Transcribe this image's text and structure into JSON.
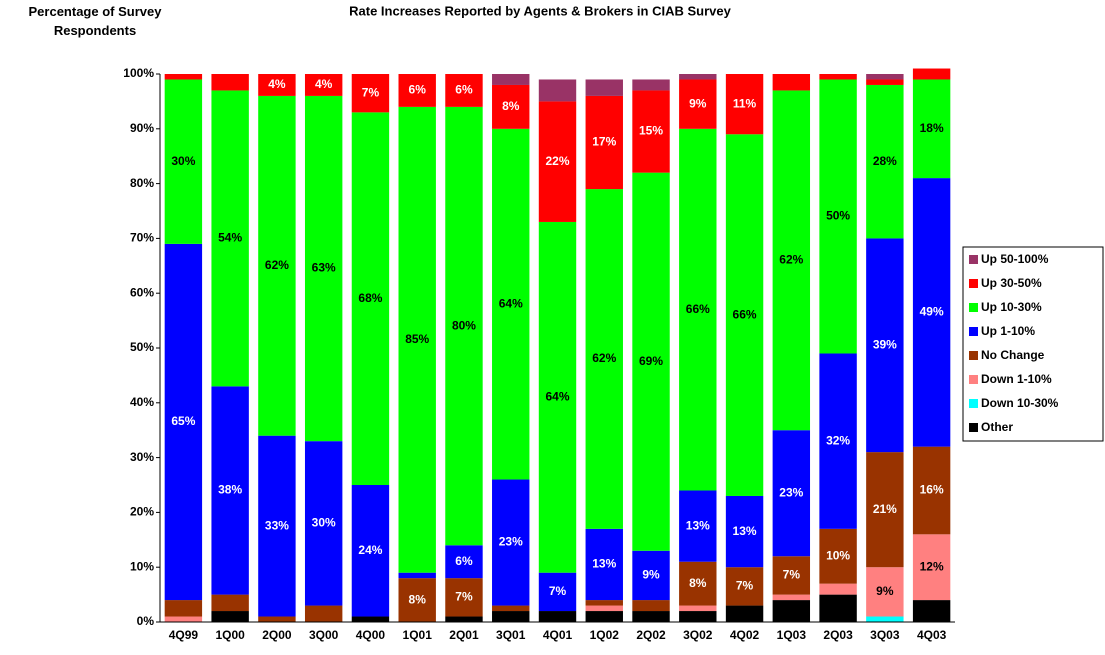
{
  "chart_data": {
    "type": "stacked-bar",
    "title": "Rate Increases Reported by Agents & Brokers in CIAB Survey",
    "y_label": "Percentage of Survey Respondents",
    "categories": [
      "4Q99",
      "1Q00",
      "2Q00",
      "3Q00",
      "4Q00",
      "1Q01",
      "2Q01",
      "3Q01",
      "4Q01",
      "1Q02",
      "2Q02",
      "3Q02",
      "4Q02",
      "1Q03",
      "2Q03",
      "3Q03",
      "4Q03"
    ],
    "ylim": [
      0,
      100
    ],
    "yticks": [
      {
        "value": 0,
        "label": "0%"
      },
      {
        "value": 10,
        "label": "10%"
      },
      {
        "value": 20,
        "label": "20%"
      },
      {
        "value": 30,
        "label": "30%"
      },
      {
        "value": 40,
        "label": "40%"
      },
      {
        "value": 50,
        "label": "50%"
      },
      {
        "value": 60,
        "label": "60%"
      },
      {
        "value": 70,
        "label": "70%"
      },
      {
        "value": 80,
        "label": "80%"
      },
      {
        "value": 90,
        "label": "90%"
      },
      {
        "value": 100,
        "label": "100%"
      }
    ],
    "legend": "right",
    "series": [
      {
        "name": "Other",
        "color": "#000000",
        "values": [
          0,
          2,
          0,
          0,
          1,
          0,
          1,
          2,
          2,
          2,
          2,
          2,
          3,
          4,
          5,
          0,
          4
        ],
        "value_labels": [
          null,
          null,
          null,
          null,
          null,
          null,
          null,
          null,
          null,
          null,
          null,
          null,
          null,
          null,
          null,
          null,
          null
        ]
      },
      {
        "name": "Down 10-30%",
        "color": "#00ffff",
        "values": [
          0,
          0,
          0,
          0,
          0,
          0,
          0,
          0,
          0,
          0,
          0,
          0,
          0,
          0,
          0,
          1,
          0
        ],
        "value_labels": [
          null,
          null,
          null,
          null,
          null,
          null,
          null,
          null,
          null,
          null,
          null,
          null,
          null,
          null,
          null,
          null,
          null
        ]
      },
      {
        "name": "Down 1-10%",
        "color": "#ff8080",
        "values": [
          1,
          0,
          0,
          0,
          0,
          0,
          0,
          0,
          0,
          1,
          0,
          1,
          0,
          1,
          2,
          9,
          12
        ],
        "value_labels": [
          null,
          null,
          null,
          null,
          null,
          null,
          null,
          null,
          null,
          null,
          null,
          null,
          null,
          null,
          null,
          "9%",
          "12%"
        ]
      },
      {
        "name": "No Change",
        "color": "#993300",
        "values": [
          3,
          3,
          1,
          3,
          0,
          8,
          7,
          1,
          0,
          1,
          2,
          8,
          7,
          7,
          10,
          21,
          16
        ],
        "value_labels": [
          null,
          null,
          null,
          null,
          null,
          "8%",
          "7%",
          null,
          null,
          null,
          null,
          "8%",
          "7%",
          "7%",
          "10%",
          "21%",
          "16%"
        ]
      },
      {
        "name": "Up 1-10%",
        "color": "#0000ff",
        "values": [
          65,
          38,
          33,
          30,
          24,
          1,
          6,
          23,
          7,
          13,
          9,
          13,
          13,
          23,
          32,
          39,
          49
        ],
        "value_labels": [
          "65%",
          "38%",
          "33%",
          "30%",
          "24%",
          null,
          "6%",
          "23%",
          "7%",
          "13%",
          "9%",
          "13%",
          "13%",
          "23%",
          "32%",
          "39%",
          "49%"
        ]
      },
      {
        "name": "Up 10-30%",
        "color": "#00ff00",
        "values": [
          30,
          54,
          62,
          63,
          68,
          85,
          80,
          64,
          64,
          62,
          69,
          66,
          66,
          62,
          50,
          28,
          18
        ],
        "value_labels": [
          "30%",
          "54%",
          "62%",
          "63%",
          "68%",
          "85%",
          "80%",
          "64%",
          "64%",
          "62%",
          "69%",
          "66%",
          "66%",
          "62%",
          "50%",
          "28%",
          "18%"
        ]
      },
      {
        "name": "Up 30-50%",
        "color": "#ff0000",
        "values": [
          1,
          3,
          4,
          4,
          7,
          6,
          6,
          8,
          22,
          17,
          15,
          9,
          11,
          3,
          1,
          1,
          2
        ],
        "value_labels": [
          null,
          null,
          "4%",
          "4%",
          "7%",
          "6%",
          "6%",
          "8%",
          "22%",
          "17%",
          "15%",
          "9%",
          "11%",
          null,
          null,
          null,
          null
        ]
      },
      {
        "name": "Up 50-100%",
        "color": "#993366",
        "values": [
          0,
          0,
          0,
          0,
          0,
          0,
          0,
          2,
          4,
          3,
          2,
          1,
          0,
          0,
          0,
          1,
          0
        ],
        "value_labels": [
          null,
          null,
          null,
          null,
          null,
          null,
          null,
          null,
          null,
          null,
          null,
          null,
          null,
          null,
          null,
          null,
          null
        ]
      }
    ]
  }
}
